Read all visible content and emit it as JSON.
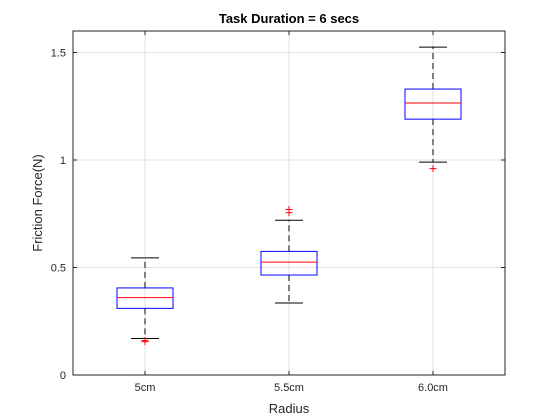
{
  "colors": {
    "box": "#0000ff",
    "median": "#ff0000",
    "whisker": "#000000",
    "outlier": "#ff0000",
    "grid": "#e0e0e0",
    "axis": "#262626"
  },
  "chart_data": {
    "type": "box",
    "title": "Task Duration = 6 secs",
    "xlabel": "Radius",
    "ylabel": "Friction Force(N)",
    "ylim": [
      0,
      1.6
    ],
    "yticks": [
      0,
      0.5,
      1,
      1.5
    ],
    "ytick_labels": [
      "0",
      "0.5",
      "1",
      "1.5"
    ],
    "grid": true,
    "categories": [
      "5cm",
      "5.5cm",
      "6.0cm"
    ],
    "boxes": [
      {
        "label": "5cm",
        "whisker_low": 0.17,
        "q1": 0.31,
        "median": 0.36,
        "q3": 0.405,
        "whisker_high": 0.545,
        "outliers": [
          0.155,
          0.16
        ]
      },
      {
        "label": "5.5cm",
        "whisker_low": 0.335,
        "q1": 0.465,
        "median": 0.525,
        "q3": 0.575,
        "whisker_high": 0.72,
        "outliers": [
          0.755,
          0.77
        ]
      },
      {
        "label": "6.0cm",
        "whisker_low": 0.99,
        "q1": 1.19,
        "median": 1.265,
        "q3": 1.33,
        "whisker_high": 1.525,
        "outliers": [
          0.96
        ]
      }
    ]
  }
}
